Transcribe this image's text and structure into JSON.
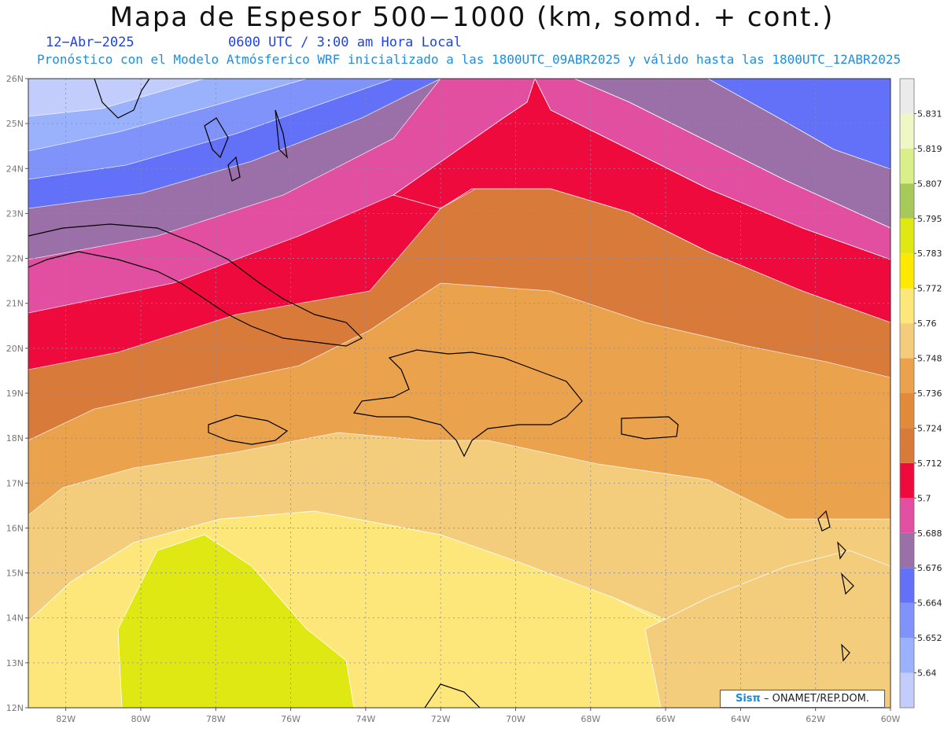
{
  "header": {
    "title": "Mapa de Espesor 500−1000 (km, somd. + cont.)",
    "date": "12−Abr−2025",
    "time": "0600 UTC / 3:00 am Hora Local",
    "model_info": "Pronóstico con el Modelo Atmósferico WRF inicializado a las 1800UTC_09ABR2025 y válido hasta las  1800UTC_12ABR2025"
  },
  "map": {
    "lon_range": [
      -83,
      -60
    ],
    "lat_range": [
      12,
      26
    ],
    "lat_labels": [
      "12N",
      "13N",
      "14N",
      "15N",
      "16N",
      "17N",
      "18N",
      "19N",
      "20N",
      "21N",
      "22N",
      "23N",
      "24N",
      "25N",
      "26N"
    ],
    "lon_labels": [
      "82W",
      "80W",
      "78W",
      "76W",
      "74W",
      "72W",
      "70W",
      "68W",
      "66W",
      "64W",
      "62W",
      "60W"
    ],
    "gridlines": "dotted"
  },
  "legend": {
    "levels": [
      "5.64",
      "5.652",
      "5.664",
      "5.676",
      "5.688",
      "5.7",
      "5.712",
      "5.724",
      "5.736",
      "5.748",
      "5.76",
      "5.772",
      "5.783",
      "5.795",
      "5.807",
      "5.819",
      "5.831"
    ],
    "colors": [
      "#c2cdfb",
      "#9ab1fc",
      "#7f93fb",
      "#6271f7",
      "#9b6fa8",
      "#e24ea0",
      "#ef0a3d",
      "#d87a3a",
      "#e08a3a",
      "#eba24c",
      "#f3cd7c",
      "#fee77a",
      "#fde800",
      "#e0e813",
      "#a6c95a",
      "#d8ef8a",
      "#eff7c4",
      "#ebebeb"
    ]
  },
  "credit": {
    "sis": "Sisπ",
    "rest": "– ONAMET/REP.DOM."
  }
}
